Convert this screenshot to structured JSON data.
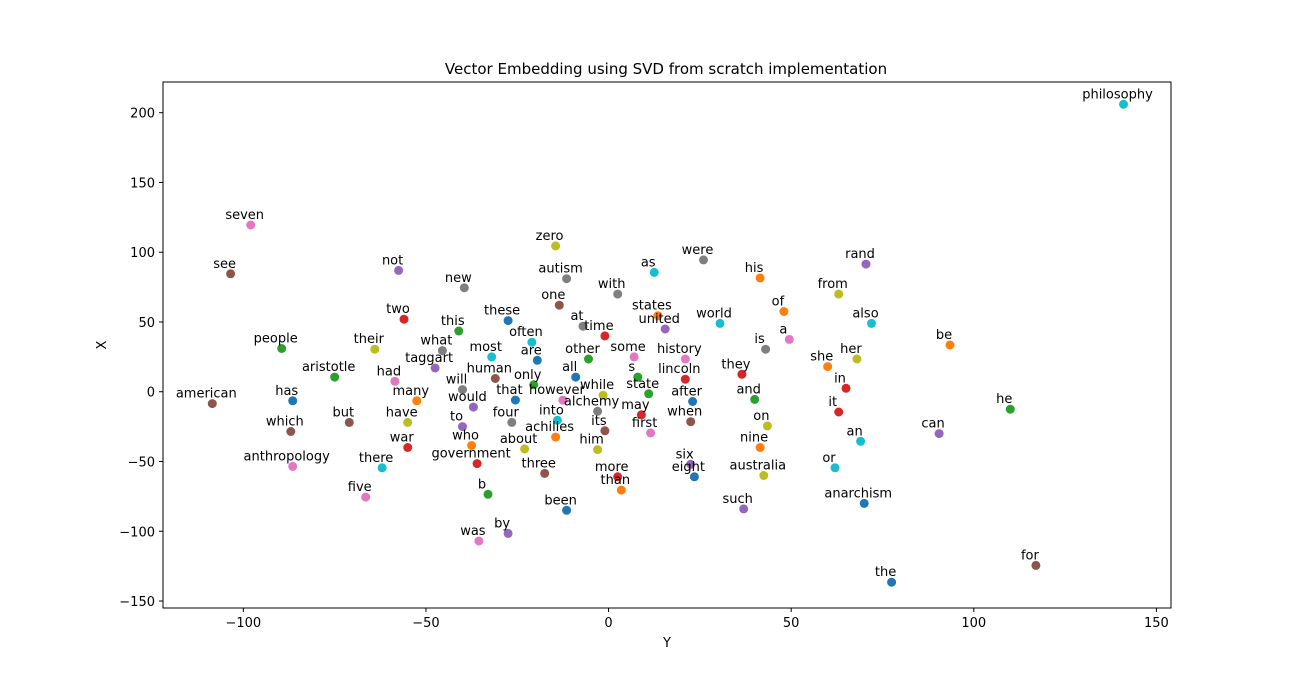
{
  "chart_data": {
    "type": "scatter",
    "title": "Vector Embedding using SVD from scratch implementation",
    "xlabel": "Y",
    "ylabel": "X",
    "xlim": [
      -122,
      154
    ],
    "ylim": [
      -155,
      222
    ],
    "xticks": [
      -100,
      -50,
      0,
      50,
      100,
      150
    ],
    "yticks": [
      -150,
      -100,
      -50,
      0,
      50,
      100,
      150,
      200
    ],
    "xtick_labels": [
      "−100",
      "−50",
      "0",
      "50",
      "100",
      "150"
    ],
    "ytick_labels": [
      "−150",
      "−100",
      "−50",
      "0",
      "50",
      "100",
      "150",
      "200"
    ],
    "grid": false,
    "palette": [
      "#1f77b4",
      "#ff7f0e",
      "#2ca02c",
      "#d62728",
      "#9467bd",
      "#8c564b",
      "#e377c2",
      "#7f7f7f",
      "#bcbd22",
      "#17becf"
    ],
    "points": [
      {
        "label": "american",
        "x": -108.5,
        "y": -8.5,
        "c": 5
      },
      {
        "label": "has",
        "x": -86.5,
        "y": -6.5,
        "c": 0
      },
      {
        "label": "which",
        "x": -87.0,
        "y": -28.5,
        "c": 5
      },
      {
        "label": "anthropology",
        "x": -86.5,
        "y": -53.5,
        "c": 6
      },
      {
        "label": "people",
        "x": -89.5,
        "y": 31.0,
        "c": 2
      },
      {
        "label": "aristotle",
        "x": -75.0,
        "y": 10.5,
        "c": 2
      },
      {
        "label": "but",
        "x": -71.0,
        "y": -22.0,
        "c": 5
      },
      {
        "label": "seven",
        "x": -98.0,
        "y": 119.5,
        "c": 6
      },
      {
        "label": "see",
        "x": -103.5,
        "y": 84.5,
        "c": 5
      },
      {
        "label": "not",
        "x": -57.5,
        "y": 87.0,
        "c": 4
      },
      {
        "label": "two",
        "x": -56.0,
        "y": 52.0,
        "c": 3
      },
      {
        "label": "their",
        "x": -64.0,
        "y": 30.5,
        "c": 8
      },
      {
        "label": "had",
        "x": -58.5,
        "y": 7.5,
        "c": 6
      },
      {
        "label": "many",
        "x": -52.5,
        "y": -6.5,
        "c": 1
      },
      {
        "label": "have",
        "x": -55.0,
        "y": -22.0,
        "c": 8
      },
      {
        "label": "war",
        "x": -55.0,
        "y": -40.0,
        "c": 3
      },
      {
        "label": "there",
        "x": -62.0,
        "y": -54.5,
        "c": 9
      },
      {
        "label": "five",
        "x": -66.5,
        "y": -75.5,
        "c": 6
      },
      {
        "label": "new",
        "x": -39.5,
        "y": 74.5,
        "c": 7
      },
      {
        "label": "this",
        "x": -41.0,
        "y": 43.5,
        "c": 2
      },
      {
        "label": "what",
        "x": -45.5,
        "y": 29.5,
        "c": 7
      },
      {
        "label": "taggart",
        "x": -47.5,
        "y": 17.0,
        "c": 4
      },
      {
        "label": "will",
        "x": -40.0,
        "y": 1.5,
        "c": 7
      },
      {
        "label": "would",
        "x": -37.0,
        "y": -11.0,
        "c": 4
      },
      {
        "label": "to",
        "x": -40.0,
        "y": -25.0,
        "c": 4
      },
      {
        "label": "who",
        "x": -37.5,
        "y": -38.5,
        "c": 1
      },
      {
        "label": "government",
        "x": -36.0,
        "y": -51.5,
        "c": 3
      },
      {
        "label": "b",
        "x": -33.0,
        "y": -73.5,
        "c": 2
      },
      {
        "label": "was",
        "x": -35.5,
        "y": -107.0,
        "c": 6
      },
      {
        "label": "by",
        "x": -27.5,
        "y": -101.5,
        "c": 4
      },
      {
        "label": "these",
        "x": -27.5,
        "y": 51.0,
        "c": 0
      },
      {
        "label": "most",
        "x": -32.0,
        "y": 25.0,
        "c": 9
      },
      {
        "label": "often",
        "x": -21.0,
        "y": 35.5,
        "c": 9
      },
      {
        "label": "are",
        "x": -19.5,
        "y": 22.5,
        "c": 0
      },
      {
        "label": "human",
        "x": -31.0,
        "y": 9.5,
        "c": 5
      },
      {
        "label": "only",
        "x": -20.5,
        "y": 5.0,
        "c": 2
      },
      {
        "label": "that",
        "x": -25.5,
        "y": -6.0,
        "c": 0
      },
      {
        "label": "however",
        "x": -12.5,
        "y": -6.0,
        "c": 6
      },
      {
        "label": "four",
        "x": -26.5,
        "y": -22.0,
        "c": 7
      },
      {
        "label": "about",
        "x": -23.0,
        "y": -41.0,
        "c": 8
      },
      {
        "label": "three",
        "x": -17.5,
        "y": -58.5,
        "c": 5
      },
      {
        "label": "into",
        "x": -14.0,
        "y": -20.5,
        "c": 9
      },
      {
        "label": "achilles",
        "x": -14.5,
        "y": -32.5,
        "c": 1
      },
      {
        "label": "been",
        "x": -11.5,
        "y": -85.0,
        "c": 0
      },
      {
        "label": "zero",
        "x": -14.5,
        "y": 104.5,
        "c": 8
      },
      {
        "label": "autism",
        "x": -11.5,
        "y": 81.0,
        "c": 7
      },
      {
        "label": "one",
        "x": -13.5,
        "y": 62.0,
        "c": 5
      },
      {
        "label": "at",
        "x": -7.0,
        "y": 47.0,
        "c": 7
      },
      {
        "label": "time",
        "x": -1.0,
        "y": 40.0,
        "c": 3
      },
      {
        "label": "other",
        "x": -5.5,
        "y": 23.5,
        "c": 2
      },
      {
        "label": "all",
        "x": -9.0,
        "y": 10.5,
        "c": 0
      },
      {
        "label": "while",
        "x": -1.5,
        "y": -2.5,
        "c": 8
      },
      {
        "label": "alchemy",
        "x": -3.0,
        "y": -14.0,
        "c": 7
      },
      {
        "label": "its",
        "x": -1.0,
        "y": -28.0,
        "c": 5
      },
      {
        "label": "him",
        "x": -3.0,
        "y": -41.5,
        "c": 8
      },
      {
        "label": "with",
        "x": 2.5,
        "y": 70.0,
        "c": 7
      },
      {
        "label": "as",
        "x": 12.5,
        "y": 85.5,
        "c": 9
      },
      {
        "label": "states",
        "x": 13.5,
        "y": 54.5,
        "c": 1
      },
      {
        "label": "united",
        "x": 15.5,
        "y": 45.0,
        "c": 4
      },
      {
        "label": "some",
        "x": 7.0,
        "y": 25.0,
        "c": 6
      },
      {
        "label": "s",
        "x": 8.0,
        "y": 10.5,
        "c": 2
      },
      {
        "label": "state",
        "x": 11.0,
        "y": -1.5,
        "c": 2
      },
      {
        "label": "may",
        "x": 9.0,
        "y": -16.5,
        "c": 3
      },
      {
        "label": "first",
        "x": 11.5,
        "y": -29.5,
        "c": 6
      },
      {
        "label": "more",
        "x": 2.5,
        "y": -61.0,
        "c": 3
      },
      {
        "label": "than",
        "x": 3.5,
        "y": -70.5,
        "c": 1
      },
      {
        "label": "were",
        "x": 26.0,
        "y": 94.5,
        "c": 7
      },
      {
        "label": "world",
        "x": 30.5,
        "y": 49.0,
        "c": 9
      },
      {
        "label": "history",
        "x": 21.0,
        "y": 23.5,
        "c": 6
      },
      {
        "label": "lincoln",
        "x": 21.0,
        "y": 9.0,
        "c": 3
      },
      {
        "label": "after",
        "x": 23.0,
        "y": -7.0,
        "c": 0
      },
      {
        "label": "when",
        "x": 22.5,
        "y": -21.5,
        "c": 5
      },
      {
        "label": "six",
        "x": 22.5,
        "y": -52.0,
        "c": 4
      },
      {
        "label": "eight",
        "x": 23.5,
        "y": -61.0,
        "c": 0
      },
      {
        "label": "his",
        "x": 41.5,
        "y": 81.5,
        "c": 1
      },
      {
        "label": "of",
        "x": 48.0,
        "y": 57.5,
        "c": 1
      },
      {
        "label": "a",
        "x": 49.5,
        "y": 37.5,
        "c": 6
      },
      {
        "label": "is",
        "x": 43.0,
        "y": 30.5,
        "c": 7
      },
      {
        "label": "they",
        "x": 36.5,
        "y": 12.5,
        "c": 3
      },
      {
        "label": "and",
        "x": 40.0,
        "y": -5.5,
        "c": 2
      },
      {
        "label": "on",
        "x": 43.5,
        "y": -24.5,
        "c": 8
      },
      {
        "label": "nine",
        "x": 41.5,
        "y": -40.0,
        "c": 1
      },
      {
        "label": "australia",
        "x": 42.5,
        "y": -60.0,
        "c": 8
      },
      {
        "label": "such",
        "x": 37.0,
        "y": -84.0,
        "c": 4
      },
      {
        "label": "rand",
        "x": 70.5,
        "y": 91.5,
        "c": 4
      },
      {
        "label": "from",
        "x": 63.0,
        "y": 70.0,
        "c": 8
      },
      {
        "label": "also",
        "x": 72.0,
        "y": 49.0,
        "c": 9
      },
      {
        "label": "she",
        "x": 60.0,
        "y": 18.0,
        "c": 1
      },
      {
        "label": "her",
        "x": 68.0,
        "y": 23.5,
        "c": 8
      },
      {
        "label": "in",
        "x": 65.0,
        "y": 2.5,
        "c": 3
      },
      {
        "label": "it",
        "x": 63.0,
        "y": -14.5,
        "c": 3
      },
      {
        "label": "an",
        "x": 69.0,
        "y": -35.5,
        "c": 9
      },
      {
        "label": "or",
        "x": 62.0,
        "y": -54.5,
        "c": 9
      },
      {
        "label": "anarchism",
        "x": 70.0,
        "y": -80.0,
        "c": 0
      },
      {
        "label": "the",
        "x": 77.5,
        "y": -136.5,
        "c": 0
      },
      {
        "label": "be",
        "x": 93.5,
        "y": 33.5,
        "c": 1
      },
      {
        "label": "can",
        "x": 90.5,
        "y": -30.0,
        "c": 4
      },
      {
        "label": "he",
        "x": 110.0,
        "y": -12.5,
        "c": 2
      },
      {
        "label": "for",
        "x": 117.0,
        "y": -124.5,
        "c": 5
      },
      {
        "label": "philosophy",
        "x": 141.0,
        "y": 206.0,
        "c": 9
      }
    ]
  }
}
